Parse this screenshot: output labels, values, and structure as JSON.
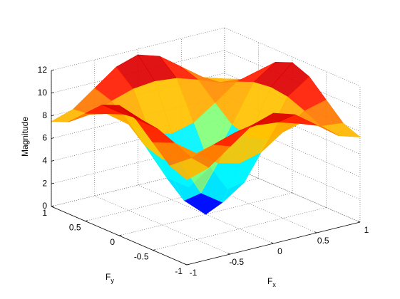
{
  "chart_data": {
    "type": "surface",
    "xlabel": "F",
    "xlabel_sub": "x",
    "ylabel": "F",
    "ylabel_sub": "y",
    "zlabel": "Magnitude",
    "colormap": "jet",
    "grid": true,
    "x": [
      -1,
      -0.75,
      -0.5,
      -0.25,
      0,
      0.25,
      0.5,
      0.75,
      1
    ],
    "y": [
      -1,
      -0.75,
      -0.5,
      -0.25,
      0,
      0.25,
      0.5,
      0.75,
      1
    ],
    "z": [
      [
        7.5,
        8.1,
        9.5,
        10.9,
        11.5,
        10.9,
        9.5,
        8.1,
        7.5
      ],
      [
        8.1,
        8.3,
        9.0,
        9.6,
        9.8,
        9.6,
        9.0,
        8.3,
        8.1
      ],
      [
        9.5,
        9.0,
        7.6,
        6.3,
        5.8,
        6.3,
        7.6,
        9.0,
        9.5
      ],
      [
        10.9,
        9.6,
        6.3,
        3.0,
        1.7,
        3.0,
        6.3,
        9.6,
        10.9
      ],
      [
        11.5,
        9.8,
        5.8,
        1.7,
        0,
        1.7,
        5.8,
        9.8,
        11.5
      ],
      [
        10.9,
        9.6,
        6.3,
        3.0,
        1.7,
        3.0,
        6.3,
        9.6,
        10.9
      ],
      [
        9.5,
        9.0,
        7.6,
        6.3,
        5.8,
        6.3,
        7.6,
        9.0,
        9.5
      ],
      [
        8.1,
        8.3,
        9.0,
        9.6,
        9.8,
        9.6,
        9.0,
        8.3,
        8.1
      ],
      [
        7.5,
        8.1,
        9.5,
        10.9,
        11.5,
        10.9,
        9.5,
        8.1,
        7.5
      ]
    ],
    "xlim": [
      -1,
      1
    ],
    "ylim": [
      -1,
      1
    ],
    "zlim": [
      0,
      12
    ],
    "xticks": [
      -1,
      -0.5,
      0,
      0.5,
      1
    ],
    "yticks": [
      -1,
      -0.5,
      0,
      0.5,
      1
    ],
    "zticks": [
      0,
      2,
      4,
      6,
      8,
      10,
      12
    ]
  }
}
